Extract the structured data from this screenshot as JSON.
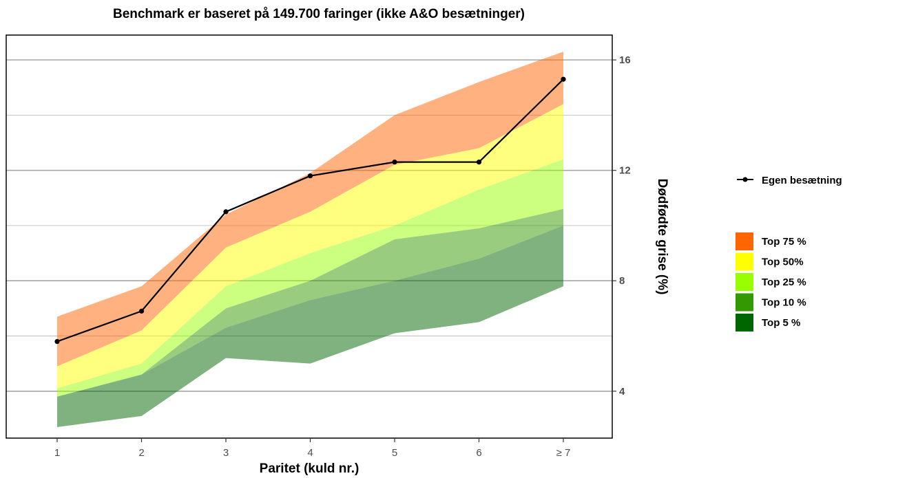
{
  "chart_data": {
    "type": "area",
    "title": "Benchmark er baseret på 149.700 faringer (ikke A&O besætninger)",
    "xlabel": "Paritet (kuld nr.)",
    "ylabel": "Dødfødte grise (%)",
    "categories": [
      "1",
      "2",
      "3",
      "4",
      "5",
      "6",
      "≥ 7"
    ],
    "ylim": [
      2.3,
      16.9
    ],
    "yticks": [
      4,
      8,
      12,
      16
    ],
    "grid": "horizontal",
    "y_axis_side": "right",
    "legend_position": "right",
    "bands": [
      {
        "name": "Top 75 %",
        "color": "#FF6600",
        "lower": [
          4.9,
          6.2,
          9.2,
          10.5,
          12.2,
          12.8,
          14.4
        ],
        "upper": [
          6.7,
          7.8,
          10.4,
          11.9,
          14.0,
          15.2,
          16.3
        ]
      },
      {
        "name": "Top 50%",
        "color": "#FFFF00",
        "lower": [
          4.1,
          5.0,
          7.8,
          9.0,
          10.0,
          11.3,
          12.4
        ],
        "upper": [
          4.9,
          6.2,
          9.2,
          10.5,
          12.2,
          12.8,
          14.4
        ]
      },
      {
        "name": "Top 25 %",
        "color": "#99FF00",
        "lower": [
          3.8,
          4.6,
          7.0,
          8.0,
          9.5,
          9.9,
          10.6
        ],
        "upper": [
          4.1,
          5.0,
          7.8,
          9.0,
          10.0,
          11.3,
          12.4
        ]
      },
      {
        "name": "Top 10 %",
        "color": "#339900",
        "lower": [
          3.8,
          4.6,
          6.3,
          7.3,
          8.0,
          8.8,
          10.0
        ],
        "upper": [
          3.8,
          4.6,
          7.0,
          8.0,
          9.5,
          9.9,
          10.6
        ]
      },
      {
        "name": "Top 5 %",
        "color": "#006600",
        "lower": [
          2.7,
          3.1,
          5.2,
          5.0,
          6.1,
          6.5,
          7.8
        ],
        "upper": [
          3.8,
          4.6,
          6.3,
          7.3,
          8.0,
          8.8,
          10.0
        ]
      }
    ],
    "series": [
      {
        "name": "Egen besætning",
        "color": "#000000",
        "values": [
          5.8,
          6.9,
          10.5,
          11.8,
          12.3,
          12.3,
          15.3
        ]
      }
    ]
  }
}
